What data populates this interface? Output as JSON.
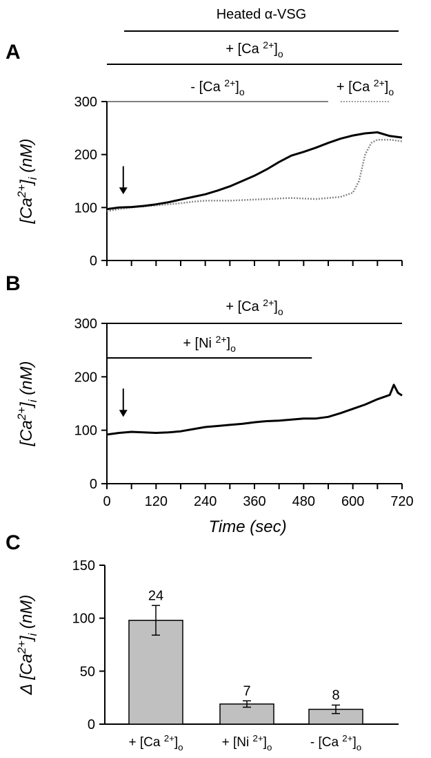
{
  "figure": {
    "top_label": "Heated α-VSG"
  },
  "chart_data": [
    {
      "panel": "A",
      "type": "line",
      "ylabel": "[Ca 2+]i (nM)",
      "ylim": [
        0,
        300
      ],
      "yticks": [
        0,
        100,
        200,
        300
      ],
      "xlim": [
        0,
        720
      ],
      "conditions": [
        {
          "label": "+ [Ca 2+]o",
          "x_start": 0,
          "x_end": 720,
          "style": "solid"
        },
        {
          "label": "- [Ca 2+]o",
          "x_start": 0,
          "x_end": 540,
          "style": "solid"
        },
        {
          "label": "+ [Ca 2+]o",
          "x_start": 570,
          "x_end": 690,
          "style": "dotted"
        }
      ],
      "arrow_x": 40,
      "series": [
        {
          "style": "solid-black",
          "x": [
            0,
            30,
            60,
            90,
            120,
            150,
            180,
            210,
            240,
            270,
            300,
            330,
            360,
            390,
            420,
            450,
            480,
            510,
            540,
            570,
            600,
            630,
            660,
            690,
            720
          ],
          "y": [
            97,
            100,
            101,
            103,
            106,
            110,
            115,
            120,
            125,
            132,
            140,
            150,
            160,
            172,
            186,
            198,
            205,
            213,
            222,
            230,
            236,
            240,
            242,
            235,
            232
          ]
        },
        {
          "style": "dotted-gray",
          "x": [
            0,
            30,
            60,
            90,
            120,
            150,
            180,
            210,
            240,
            270,
            300,
            330,
            360,
            390,
            420,
            450,
            480,
            510,
            540,
            570,
            600,
            615,
            630,
            645,
            660,
            690,
            720
          ],
          "y": [
            93,
            97,
            100,
            102,
            104,
            106,
            108,
            111,
            113,
            113,
            113,
            114,
            115,
            116,
            117,
            118,
            117,
            116,
            118,
            120,
            128,
            150,
            200,
            222,
            228,
            228,
            225
          ]
        }
      ]
    },
    {
      "panel": "B",
      "type": "line",
      "ylabel": "[Ca 2+]i (nM)",
      "ylim": [
        0,
        300
      ],
      "yticks": [
        0,
        100,
        200,
        300
      ],
      "xlim": [
        0,
        720
      ],
      "xticks": [
        0,
        120,
        240,
        360,
        480,
        600,
        720
      ],
      "xlabel": "Time (sec)",
      "conditions": [
        {
          "label": "+ [Ca 2+]o",
          "x_start": 0,
          "x_end": 720,
          "style": "solid"
        },
        {
          "label": "+ [Ni 2+]o",
          "x_start": 0,
          "x_end": 500,
          "style": "solid"
        }
      ],
      "arrow_x": 40,
      "series": [
        {
          "style": "solid-black",
          "x": [
            0,
            30,
            60,
            90,
            120,
            150,
            180,
            210,
            240,
            270,
            300,
            330,
            360,
            390,
            420,
            450,
            480,
            510,
            540,
            570,
            600,
            630,
            660,
            690,
            700,
            710,
            720
          ],
          "y": [
            92,
            95,
            97,
            96,
            95,
            96,
            98,
            102,
            106,
            108,
            110,
            112,
            115,
            117,
            118,
            120,
            122,
            122,
            125,
            132,
            140,
            148,
            158,
            166,
            185,
            170,
            165
          ]
        }
      ]
    },
    {
      "panel": "C",
      "type": "bar",
      "ylabel": "Δ [Ca 2+]i (nM)",
      "ylim": [
        0,
        150
      ],
      "yticks": [
        0,
        50,
        100,
        150
      ],
      "categories": [
        "+ [Ca 2+]o",
        "+ [Ni 2+]o",
        "- [Ca 2+]o"
      ],
      "values": [
        98,
        19,
        14
      ],
      "errors": [
        14,
        3,
        4
      ],
      "n_labels": [
        "24",
        "7",
        "8"
      ]
    }
  ]
}
